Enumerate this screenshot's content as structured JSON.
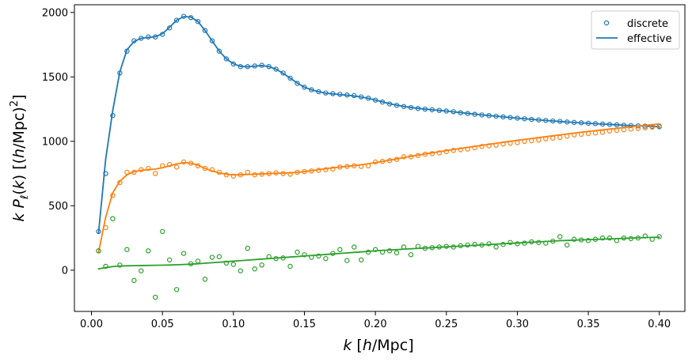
{
  "chart_data": {
    "type": "line",
    "title": "",
    "xlabel": "k [h/Mpc]",
    "ylabel": "k P_ℓ(k) [(h/Mpc)^2]",
    "xlim": [
      -0.012,
      0.418
    ],
    "ylim": [
      -320,
      2060
    ],
    "xticks": [
      0.0,
      0.05,
      0.1,
      0.15,
      0.2,
      0.25,
      0.3,
      0.35,
      0.4
    ],
    "xtick_labels": [
      "0.00",
      "0.05",
      "0.10",
      "0.15",
      "0.20",
      "0.25",
      "0.30",
      "0.35",
      "0.40"
    ],
    "yticks": [
      0,
      500,
      1000,
      1500,
      2000
    ],
    "ytick_labels": [
      "0",
      "500",
      "1000",
      "1500",
      "2000"
    ],
    "grid": false,
    "legend_position": "top-right",
    "legend": [
      {
        "label": "discrete",
        "marker": "open-circle"
      },
      {
        "label": "effective",
        "marker": "line"
      }
    ],
    "colors": {
      "monopole": "#1f77b4",
      "quadrupole": "#ff7f0e",
      "hexadecapole": "#2ca02c"
    },
    "x": [
      0.005,
      0.01,
      0.015,
      0.02,
      0.025,
      0.03,
      0.035,
      0.04,
      0.045,
      0.05,
      0.055,
      0.06,
      0.065,
      0.07,
      0.075,
      0.08,
      0.085,
      0.09,
      0.095,
      0.1,
      0.105,
      0.11,
      0.115,
      0.12,
      0.125,
      0.13,
      0.135,
      0.14,
      0.145,
      0.15,
      0.155,
      0.16,
      0.165,
      0.17,
      0.175,
      0.18,
      0.185,
      0.19,
      0.195,
      0.2,
      0.205,
      0.21,
      0.215,
      0.22,
      0.225,
      0.23,
      0.235,
      0.24,
      0.245,
      0.25,
      0.255,
      0.26,
      0.265,
      0.27,
      0.275,
      0.28,
      0.285,
      0.29,
      0.295,
      0.3,
      0.305,
      0.31,
      0.315,
      0.32,
      0.325,
      0.33,
      0.335,
      0.34,
      0.345,
      0.35,
      0.355,
      0.36,
      0.365,
      0.37,
      0.375,
      0.38,
      0.385,
      0.39,
      0.395,
      0.4
    ],
    "series": [
      {
        "key": "monopole",
        "discrete": [
          300,
          750,
          1200,
          1530,
          1700,
          1780,
          1800,
          1810,
          1810,
          1830,
          1880,
          1940,
          1970,
          1960,
          1930,
          1860,
          1780,
          1700,
          1640,
          1600,
          1580,
          1580,
          1585,
          1590,
          1580,
          1560,
          1530,
          1490,
          1450,
          1420,
          1400,
          1385,
          1375,
          1370,
          1365,
          1360,
          1355,
          1345,
          1335,
          1320,
          1305,
          1290,
          1280,
          1270,
          1262,
          1255,
          1250,
          1245,
          1240,
          1235,
          1230,
          1222,
          1216,
          1210,
          1205,
          1200,
          1195,
          1190,
          1185,
          1180,
          1175,
          1170,
          1166,
          1162,
          1158,
          1155,
          1150,
          1147,
          1144,
          1140,
          1137,
          1134,
          1131,
          1128,
          1125,
          1122,
          1120,
          1118,
          1116,
          1113
        ],
        "effective": [
          290,
          860,
          1240,
          1540,
          1710,
          1775,
          1800,
          1806,
          1812,
          1835,
          1885,
          1940,
          1968,
          1965,
          1930,
          1860,
          1780,
          1700,
          1640,
          1602,
          1582,
          1579,
          1583,
          1588,
          1580,
          1560,
          1528,
          1490,
          1452,
          1420,
          1400,
          1385,
          1374,
          1368,
          1363,
          1358,
          1352,
          1344,
          1334,
          1320,
          1306,
          1292,
          1281,
          1271,
          1263,
          1256,
          1250,
          1245,
          1240,
          1235,
          1229,
          1223,
          1217,
          1211,
          1205,
          1200,
          1195,
          1190,
          1185,
          1180,
          1175,
          1171,
          1166,
          1162,
          1158,
          1154,
          1150,
          1147,
          1143,
          1140,
          1137,
          1134,
          1131,
          1128,
          1125,
          1122,
          1120,
          1118,
          1116,
          1113
        ]
      },
      {
        "key": "quadrupole",
        "discrete": [
          150,
          330,
          580,
          680,
          760,
          760,
          780,
          790,
          750,
          810,
          820,
          800,
          840,
          830,
          810,
          790,
          780,
          760,
          740,
          730,
          740,
          760,
          740,
          745,
          750,
          755,
          750,
          745,
          760,
          765,
          770,
          775,
          780,
          785,
          800,
          805,
          810,
          805,
          810,
          840,
          845,
          850,
          860,
          880,
          880,
          890,
          900,
          905,
          910,
          920,
          930,
          935,
          940,
          950,
          960,
          965,
          970,
          980,
          985,
          990,
          1000,
          1005,
          1010,
          1020,
          1025,
          1030,
          1040,
          1050,
          1055,
          1060,
          1065,
          1070,
          1080,
          1085,
          1090,
          1095,
          1100,
          1105,
          1110,
          1120
        ],
        "effective": [
          140,
          410,
          600,
          690,
          740,
          765,
          775,
          780,
          785,
          795,
          810,
          825,
          835,
          830,
          815,
          790,
          770,
          755,
          745,
          740,
          740,
          743,
          745,
          747,
          750,
          752,
          753,
          755,
          760,
          765,
          772,
          780,
          787,
          795,
          800,
          806,
          812,
          818,
          826,
          835,
          844,
          854,
          864,
          874,
          884,
          893,
          902,
          911,
          920,
          928,
          937,
          945,
          953,
          961,
          969,
          977,
          985,
          993,
          1000,
          1008,
          1015,
          1022,
          1029,
          1036,
          1043,
          1050,
          1057,
          1064,
          1071,
          1077,
          1083,
          1089,
          1095,
          1101,
          1107,
          1113,
          1119,
          1124,
          1130,
          1135
        ]
      },
      {
        "key": "hexadecapole",
        "discrete": [
          150,
          30,
          400,
          40,
          160,
          -80,
          -5,
          150,
          -210,
          300,
          80,
          -150,
          130,
          50,
          70,
          -70,
          100,
          105,
          55,
          45,
          -5,
          170,
          10,
          40,
          105,
          90,
          95,
          30,
          140,
          120,
          100,
          110,
          90,
          130,
          160,
          75,
          180,
          80,
          140,
          160,
          140,
          150,
          135,
          180,
          120,
          185,
          170,
          175,
          180,
          185,
          180,
          190,
          195,
          200,
          195,
          205,
          180,
          200,
          215,
          205,
          210,
          220,
          215,
          210,
          225,
          260,
          195,
          240,
          235,
          230,
          240,
          250,
          250,
          230,
          250,
          245,
          250,
          265,
          240,
          260
        ],
        "effective": [
          10,
          20,
          28,
          32,
          34,
          35,
          36,
          37,
          38,
          39,
          40,
          42,
          44,
          47,
          50,
          54,
          58,
          62,
          66,
          70,
          74,
          78,
          82,
          86,
          90,
          94,
          98,
          102,
          106,
          110,
          114,
          118,
          122,
          126,
          130,
          134,
          138,
          142,
          146,
          150,
          154,
          157,
          160,
          163,
          166,
          169,
          172,
          175,
          178,
          181,
          184,
          187,
          190,
          193,
          196,
          199,
          202,
          205,
          208,
          211,
          214,
          217,
          220,
          223,
          226,
          229,
          231,
          233,
          235,
          237,
          239,
          241,
          243,
          245,
          247,
          249,
          251,
          253,
          255,
          256
        ]
      }
    ]
  }
}
